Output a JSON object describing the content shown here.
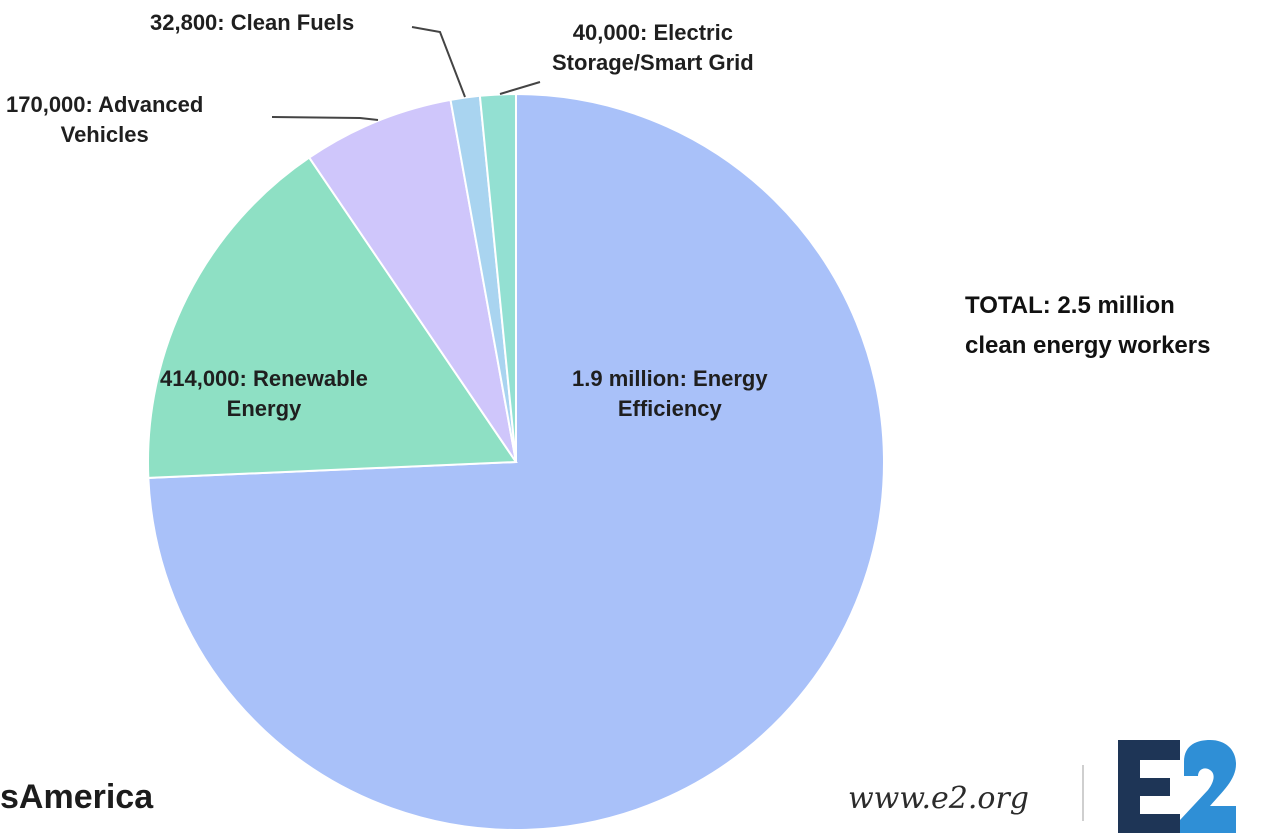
{
  "chart_data": {
    "type": "pie",
    "unit": "workers",
    "slices": [
      {
        "label": "Energy Efficiency",
        "value_text": "1.9 million",
        "value": 1900000,
        "color": "#a9c1f9"
      },
      {
        "label": "Renewable Energy",
        "value_text": "414,000",
        "value": 414000,
        "color": "#8ee0c4"
      },
      {
        "label": "Advanced Vehicles",
        "value_text": "170,000",
        "value": 170000,
        "color": "#cfc6fb"
      },
      {
        "label": "Clean Fuels",
        "value_text": "32,800",
        "value": 32800,
        "color": "#a9d4f0"
      },
      {
        "label": "Electric Storage/Smart Grid",
        "value_text": "40,000",
        "value": 40000,
        "color": "#93e0d2"
      }
    ],
    "labels": {
      "efficiency": {
        "line1": "1.9 million: Energy",
        "line2": "Efficiency"
      },
      "renewable": {
        "line1": "414,000:  Renewable",
        "line2": "Energy"
      },
      "vehicles": {
        "line1": "170,000:  Advanced",
        "line2": "Vehicles"
      },
      "fuels": {
        "line1": "32,800:  Clean Fuels"
      },
      "storage": {
        "line1": "40,000:  Electric",
        "line2": "Storage/Smart Grid"
      }
    }
  },
  "annotation": {
    "total_line1": "TOTAL: 2.5 million",
    "total_line2": "clean energy workers"
  },
  "footer": {
    "brand_text": "sAmerica",
    "website": "www.e2.org",
    "logo_text": "E2",
    "logo_color": "#1e3556",
    "logo_accent": "#2f8fd6"
  }
}
